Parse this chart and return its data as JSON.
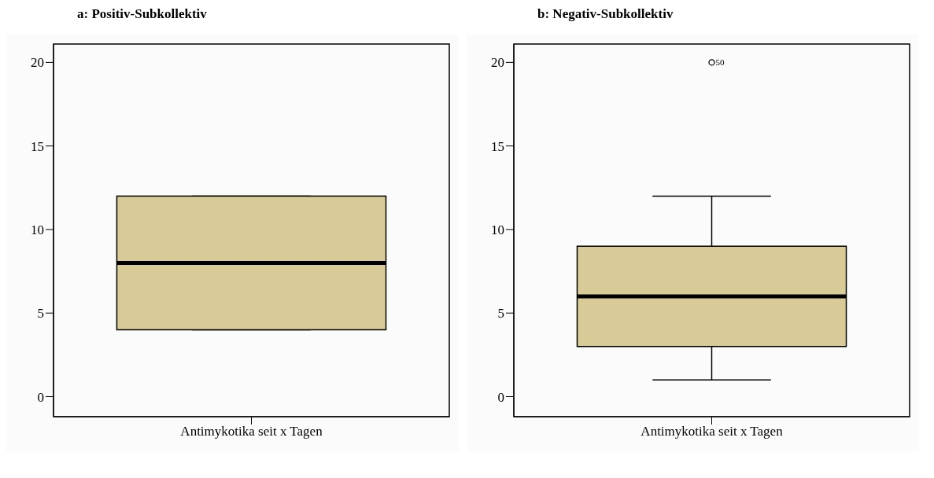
{
  "chart_data": [
    {
      "type": "box",
      "title": "a: Positiv-Subkollektiv",
      "categories": [
        "Antimykotika seit x Tagen"
      ],
      "color": "#d8cb98",
      "boxes": [
        {
          "low": 4,
          "q1": 4,
          "median": 8,
          "q3": 12,
          "high": 12
        }
      ],
      "ylim": [
        -1.2,
        21.1
      ],
      "yticks": [
        0,
        5,
        10,
        15,
        20
      ]
    },
    {
      "type": "box",
      "title": "b: Negativ-Subkollektiv",
      "categories": [
        "Antimykotika seit x Tagen"
      ],
      "color": "#d8cb98",
      "boxes": [
        {
          "low": 1,
          "q1": 3,
          "median": 6,
          "q3": 9,
          "high": 12,
          "outliers": [
            20
          ]
        }
      ],
      "ylim": [
        -1.2,
        21.1
      ],
      "yticks": [
        0,
        5,
        10,
        15,
        20
      ],
      "annotations": [
        "50"
      ]
    }
  ]
}
